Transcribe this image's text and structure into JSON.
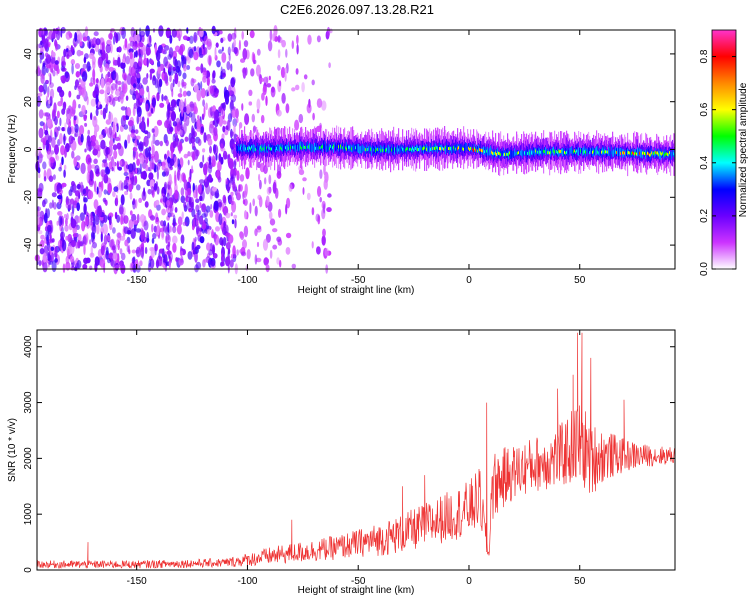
{
  "page": {
    "title": "C2E6.2026.097.13.28.R21"
  },
  "chart_data": [
    {
      "type": "heatmap",
      "title": "C2E6.2026.097.13.28.R21",
      "xlabel": "Height of straight line (km)",
      "ylabel": "Frequency (Hz)",
      "xlim": [
        -195,
        93
      ],
      "ylim": [
        -50,
        50
      ],
      "xticks": [
        -150,
        -100,
        -50,
        0,
        50
      ],
      "yticks": [
        -40,
        -20,
        0,
        20,
        40
      ],
      "colorbar": {
        "label": "Normalized spectral amplitude",
        "range": [
          0,
          0.9
        ],
        "ticks": [
          0.0,
          0.2,
          0.4,
          0.6,
          0.8
        ],
        "colormap": [
          "#ffffff",
          "#cc33ff",
          "#6a00ff",
          "#0000ff",
          "#00ffff",
          "#00ff00",
          "#ffff00",
          "#ff8800",
          "#ff0000",
          "#ff33cc"
        ]
      },
      "signal_track": {
        "x": [
          -105,
          -90,
          -75,
          -60,
          -45,
          -30,
          -15,
          0,
          15,
          30,
          45,
          60,
          75,
          93
        ],
        "frequency_hz": [
          0.5,
          0.5,
          1,
          1,
          0,
          0,
          0.5,
          0.5,
          -2,
          -1,
          -1,
          -1,
          -1.5,
          -2
        ],
        "peak_amplitude": [
          0.45,
          0.5,
          0.55,
          0.6,
          0.55,
          0.5,
          0.6,
          0.85,
          0.6,
          0.6,
          0.7,
          0.65,
          0.85,
          0.6
        ]
      },
      "noise_region": {
        "x_range": [
          -195,
          -62
        ],
        "amplitude": [
          0.05,
          0.25
        ]
      }
    },
    {
      "type": "line",
      "xlabel": "Height of straight line (km)",
      "ylabel": "SNR (10 * v/v)",
      "xlim": [
        -195,
        93
      ],
      "ylim": [
        0,
        4300
      ],
      "xticks": [
        -150,
        -100,
        -50,
        0,
        50
      ],
      "yticks": [
        0,
        1000,
        2000,
        3000,
        4000
      ],
      "color": "#ee3333",
      "series": [
        {
          "x": [
            -195,
            -150,
            -110,
            -100,
            -90,
            -80,
            -70,
            -60,
            -50,
            -40,
            -30,
            -20,
            -10,
            0,
            5,
            9,
            10,
            12,
            20,
            30,
            40,
            45,
            50,
            55,
            60,
            70,
            80,
            93
          ],
          "values": [
            100,
            100,
            130,
            180,
            250,
            300,
            350,
            400,
            480,
            550,
            650,
            800,
            950,
            1100,
            1300,
            200,
            1400,
            1550,
            1750,
            1900,
            2000,
            2150,
            2300,
            2000,
            2050,
            2050,
            2050,
            2050
          ],
          "spread": [
            70,
            70,
            80,
            120,
            160,
            180,
            200,
            220,
            250,
            300,
            350,
            400,
            450,
            500,
            550,
            150,
            600,
            600,
            500,
            500,
            550,
            650,
            800,
            700,
            500,
            300,
            200,
            150
          ],
          "spikes": [
            [
              -172,
              500
            ],
            [
              -80,
              900
            ],
            [
              -30,
              1500
            ],
            [
              -20,
              1700
            ],
            [
              8,
              3000
            ],
            [
              40,
              3250
            ],
            [
              47,
              3500
            ],
            [
              49,
              4250
            ],
            [
              51,
              4250
            ],
            [
              55,
              3800
            ],
            [
              70,
              3050
            ]
          ]
        }
      ]
    }
  ]
}
